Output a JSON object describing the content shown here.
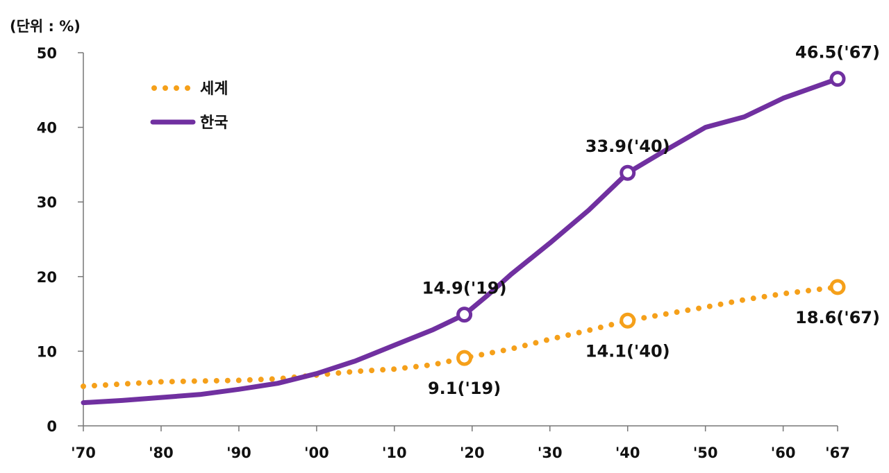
{
  "unit_label": "(단위 : %)",
  "colors": {
    "world": "#F5A01A",
    "korea": "#7030A0",
    "axis": "#777777"
  },
  "legend": {
    "world": "세계",
    "korea": "한국"
  },
  "chart_data": {
    "type": "line",
    "ylim": [
      0,
      50
    ],
    "yticks": [
      0,
      10,
      20,
      30,
      40,
      50
    ],
    "xlim": [
      1970,
      2067
    ],
    "xticks": [
      {
        "x": 1970,
        "label": "'70"
      },
      {
        "x": 1980,
        "label": "'80"
      },
      {
        "x": 1990,
        "label": "'90"
      },
      {
        "x": 2000,
        "label": "'00"
      },
      {
        "x": 2010,
        "label": "'10"
      },
      {
        "x": 2020,
        "label": "'20"
      },
      {
        "x": 2030,
        "label": "'30"
      },
      {
        "x": 2040,
        "label": "'40"
      },
      {
        "x": 2050,
        "label": "'50"
      },
      {
        "x": 2060,
        "label": "'60"
      },
      {
        "x": 2067,
        "label": "'67"
      }
    ],
    "series": [
      {
        "key": "world",
        "name": "세계",
        "style": "dotted",
        "points": [
          [
            1970,
            5.3
          ],
          [
            1975,
            5.6
          ],
          [
            1980,
            5.9
          ],
          [
            1985,
            6.0
          ],
          [
            1990,
            6.1
          ],
          [
            1995,
            6.3
          ],
          [
            2000,
            6.8
          ],
          [
            2005,
            7.3
          ],
          [
            2010,
            7.6
          ],
          [
            2015,
            8.2
          ],
          [
            2019,
            9.1
          ],
          [
            2025,
            10.3
          ],
          [
            2030,
            11.6
          ],
          [
            2035,
            12.8
          ],
          [
            2040,
            14.1
          ],
          [
            2045,
            15.0
          ],
          [
            2050,
            15.9
          ],
          [
            2055,
            16.9
          ],
          [
            2060,
            17.7
          ],
          [
            2067,
            18.6
          ]
        ]
      },
      {
        "key": "korea",
        "name": "한국",
        "style": "solid",
        "points": [
          [
            1970,
            3.1
          ],
          [
            1975,
            3.4
          ],
          [
            1980,
            3.8
          ],
          [
            1985,
            4.2
          ],
          [
            1990,
            4.9
          ],
          [
            1995,
            5.7
          ],
          [
            2000,
            7.0
          ],
          [
            2005,
            8.7
          ],
          [
            2010,
            10.8
          ],
          [
            2015,
            12.9
          ],
          [
            2019,
            14.9
          ],
          [
            2022,
            17.5
          ],
          [
            2025,
            20.3
          ],
          [
            2030,
            24.5
          ],
          [
            2035,
            28.9
          ],
          [
            2040,
            33.9
          ],
          [
            2045,
            37.0
          ],
          [
            2050,
            40.0
          ],
          [
            2055,
            41.4
          ],
          [
            2060,
            43.9
          ],
          [
            2067,
            46.5
          ]
        ]
      }
    ],
    "annotations": [
      {
        "series": "korea",
        "x": 2019,
        "y": 14.9,
        "label": "14.9('19)",
        "pos": "above"
      },
      {
        "series": "korea",
        "x": 2040,
        "y": 33.9,
        "label": "33.9('40)",
        "pos": "above"
      },
      {
        "series": "korea",
        "x": 2067,
        "y": 46.5,
        "label": "46.5('67)",
        "pos": "above"
      },
      {
        "series": "world",
        "x": 2019,
        "y": 9.1,
        "label": "9.1('19)",
        "pos": "below"
      },
      {
        "series": "world",
        "x": 2040,
        "y": 14.1,
        "label": "14.1('40)",
        "pos": "below"
      },
      {
        "series": "world",
        "x": 2067,
        "y": 18.6,
        "label": "18.6('67)",
        "pos": "below"
      }
    ]
  }
}
